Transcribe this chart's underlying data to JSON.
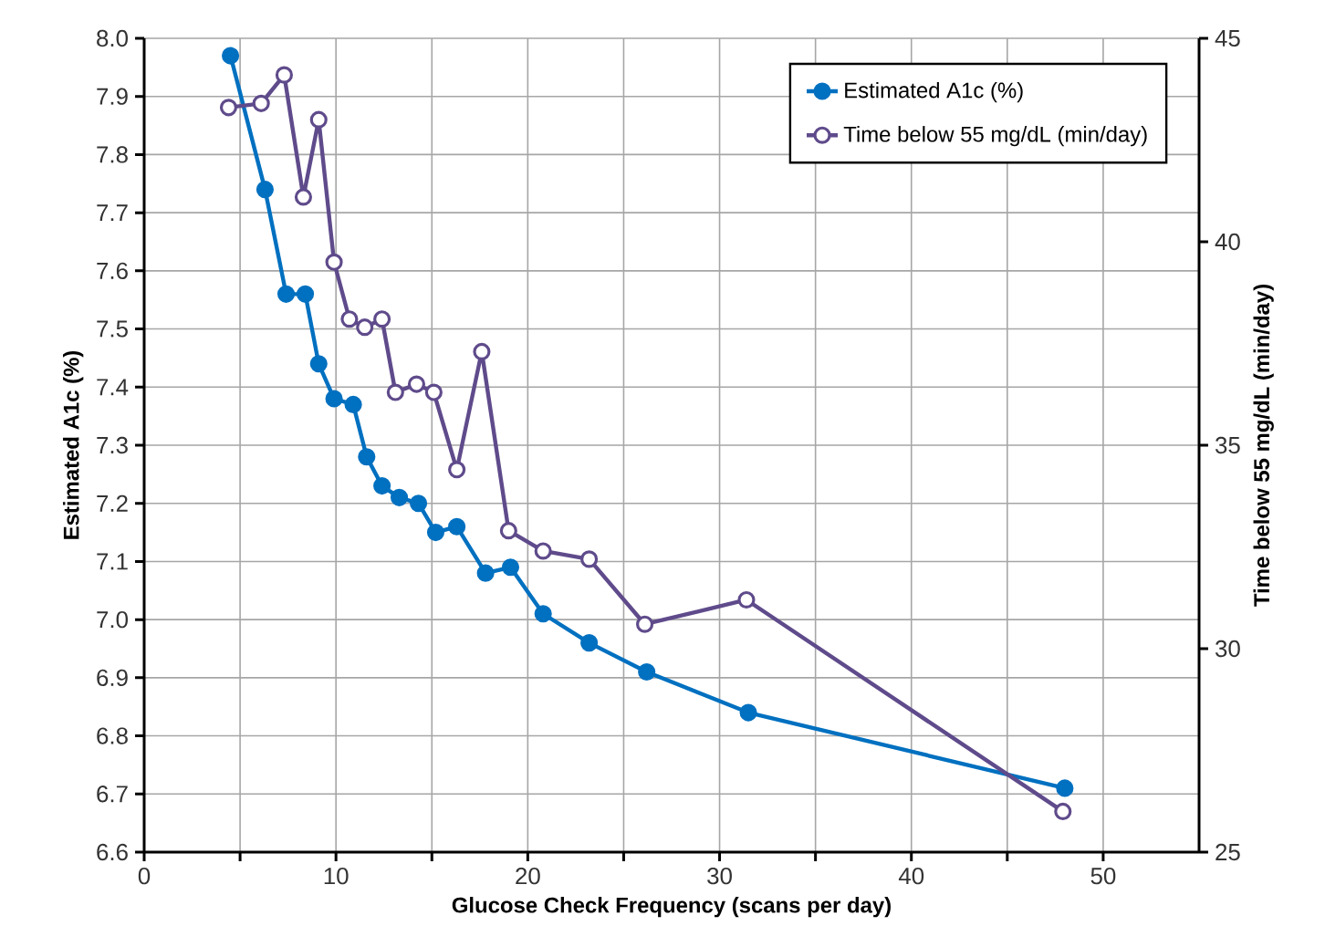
{
  "chart_data": {
    "type": "line",
    "xlabel": "Glucose Check Frequency (scans per day)",
    "ylabel": "Estimated A1c (%)",
    "y2label": "Time below 55 mg/dL (min/day)",
    "xlim": [
      0,
      55
    ],
    "xticks": [
      0,
      {
        "value": 5,
        "label": null
      },
      10,
      {
        "value": 15,
        "label": null
      },
      20,
      {
        "value": 25,
        "label": null
      },
      30,
      {
        "value": 35,
        "label": null
      },
      40,
      {
        "value": 45,
        "label": null
      },
      50
    ],
    "ylim": [
      6.6,
      8.0
    ],
    "yticks": [
      {
        "value": 6.6,
        "label": "6.6"
      },
      {
        "value": 6.7,
        "label": "6.7"
      },
      {
        "value": 6.8,
        "label": "6.8"
      },
      {
        "value": 6.9,
        "label": "6.9"
      },
      {
        "value": 7.0,
        "label": "7.0"
      },
      {
        "value": 7.1,
        "label": "7.1"
      },
      {
        "value": 7.2,
        "label": "7.2"
      },
      {
        "value": 7.3,
        "label": "7.3"
      },
      {
        "value": 7.4,
        "label": "7.4"
      },
      {
        "value": 7.5,
        "label": "7.5"
      },
      {
        "value": 7.6,
        "label": "7.6"
      },
      {
        "value": 7.7,
        "label": "7.7"
      },
      {
        "value": 7.8,
        "label": "7.8"
      },
      {
        "value": 7.9,
        "label": "7.9"
      },
      {
        "value": 8.0,
        "label": "8.0"
      }
    ],
    "y2lim": [
      25,
      45
    ],
    "y2ticks": [
      25,
      30,
      35,
      40,
      45
    ],
    "grid": true,
    "legend": "top right",
    "marker": "circle",
    "line_style": "solid",
    "series": [
      {
        "name": "Estimated A1c (%)",
        "color": "#0070c0",
        "x": [
          4.5,
          6.3,
          7.4,
          8.4,
          9.1,
          9.9,
          10.9,
          11.6,
          12.4,
          13.3,
          14.3,
          15.2,
          16.3,
          17.8,
          19.1,
          20.8,
          23.2,
          26.2,
          31.5,
          48.0
        ],
        "values": [
          7.97,
          7.74,
          7.56,
          7.56,
          7.44,
          7.38,
          7.37,
          7.28,
          7.23,
          7.21,
          7.2,
          7.15,
          7.16,
          7.08,
          7.09,
          7.01,
          6.96,
          6.91,
          6.84,
          6.71
        ]
      },
      {
        "name": "Time below 55 mg/dL (min/day)",
        "color": "#5f4b8b",
        "axis": "y2",
        "x": [
          4.4,
          6.1,
          7.3,
          8.3,
          9.1,
          9.9,
          10.7,
          11.5,
          12.4,
          13.1,
          14.2,
          15.1,
          16.3,
          17.6,
          19.0,
          20.8,
          23.2,
          26.1,
          31.4,
          47.9
        ],
        "values": [
          43.3,
          43.4,
          44.1,
          41.1,
          43.0,
          39.5,
          38.1,
          37.9,
          38.1,
          36.3,
          36.5,
          36.3,
          34.4,
          37.3,
          32.9,
          32.4,
          32.2,
          30.6,
          31.2,
          26.0
        ]
      }
    ]
  }
}
